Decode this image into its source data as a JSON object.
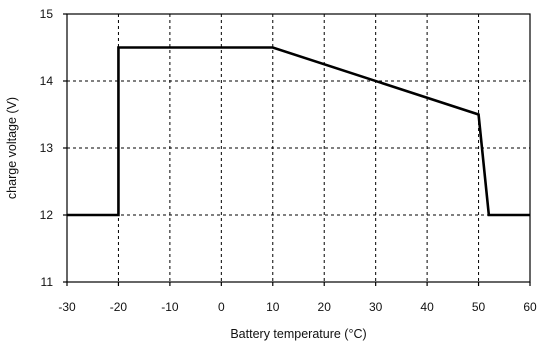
{
  "chart_data": {
    "type": "line",
    "title": "",
    "xlabel": "Battery temperature (°C)",
    "ylabel": "charge voltage (V)",
    "xlim": [
      -30,
      60
    ],
    "ylim": [
      11,
      15
    ],
    "x_ticks": [
      -30,
      -20,
      -10,
      0,
      10,
      20,
      30,
      40,
      50,
      60
    ],
    "y_ticks": [
      11,
      12,
      13,
      14,
      15
    ],
    "grid": true,
    "grid_style": "dashed",
    "legend": "none",
    "series": [
      {
        "color": "#000000",
        "points": [
          {
            "x": -30,
            "y": 12.0
          },
          {
            "x": -20,
            "y": 12.0
          },
          {
            "x": -20,
            "y": 14.5
          },
          {
            "x": 10,
            "y": 14.5
          },
          {
            "x": 50,
            "y": 13.5
          },
          {
            "x": 52,
            "y": 12.0
          },
          {
            "x": 60,
            "y": 12.0
          }
        ]
      }
    ]
  }
}
